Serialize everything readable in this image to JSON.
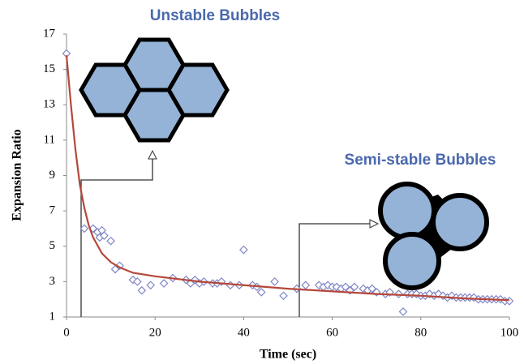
{
  "chart_data": {
    "type": "scatter",
    "xlabel": "Time (sec)",
    "ylabel": "Expansion Ratio",
    "xlim": [
      0,
      100
    ],
    "ylim": [
      1,
      17
    ],
    "xticks": [
      0,
      20,
      40,
      60,
      80,
      100
    ],
    "yticks": [
      1,
      3,
      5,
      7,
      9,
      11,
      13,
      15,
      17
    ],
    "annotations": [
      {
        "text": "Unstable Bubbles"
      },
      {
        "text": "Semi-stable Bubbles"
      }
    ],
    "series": [
      {
        "type": "scatter",
        "color": "#7f86c6",
        "x": [
          0,
          4,
          6,
          7,
          7.5,
          8,
          8.5,
          10,
          11,
          12,
          15,
          16,
          17,
          19,
          22,
          24,
          27,
          28,
          29,
          30,
          31,
          33,
          34,
          35,
          37,
          39,
          40,
          42,
          43,
          44,
          47,
          49,
          52,
          54,
          57,
          58,
          59,
          60,
          61,
          62,
          63,
          64,
          65,
          67,
          68,
          69,
          70,
          72,
          73,
          75,
          76,
          77,
          78,
          79,
          80,
          81,
          82,
          83,
          84,
          85,
          86,
          87,
          88,
          89,
          90,
          91,
          92,
          93,
          94,
          95,
          96,
          97,
          98,
          99,
          100
        ],
        "values": [
          15.9,
          6.0,
          6.0,
          5.8,
          5.5,
          5.9,
          5.6,
          5.3,
          3.7,
          3.9,
          3.1,
          3.0,
          2.5,
          2.8,
          2.9,
          3.2,
          3.1,
          2.9,
          3.1,
          2.9,
          3.0,
          2.9,
          2.9,
          3.0,
          2.8,
          2.8,
          4.8,
          2.8,
          2.7,
          2.4,
          3.0,
          2.2,
          2.6,
          2.8,
          2.8,
          2.7,
          2.8,
          2.7,
          2.7,
          2.6,
          2.7,
          2.5,
          2.7,
          2.6,
          2.5,
          2.6,
          2.4,
          2.3,
          2.4,
          2.3,
          1.3,
          2.3,
          2.3,
          2.3,
          2.2,
          2.2,
          2.3,
          2.2,
          2.3,
          2.2,
          2.1,
          2.2,
          2.1,
          2.1,
          2.1,
          2.1,
          2.1,
          2.0,
          2.0,
          2.0,
          2.0,
          2.0,
          2.0,
          1.9,
          1.9
        ]
      },
      {
        "type": "line",
        "color": "#b5473a",
        "x": [
          0,
          1,
          2,
          3,
          4,
          5,
          6,
          8,
          10,
          12,
          15,
          20,
          30,
          40,
          50,
          60,
          70,
          80,
          90,
          100
        ],
        "values": [
          15.8,
          13,
          10.5,
          8.5,
          7.2,
          6.2,
          5.5,
          4.6,
          4.1,
          3.8,
          3.5,
          3.3,
          3.0,
          2.8,
          2.6,
          2.45,
          2.3,
          2.2,
          2.05,
          1.95
        ]
      }
    ]
  }
}
